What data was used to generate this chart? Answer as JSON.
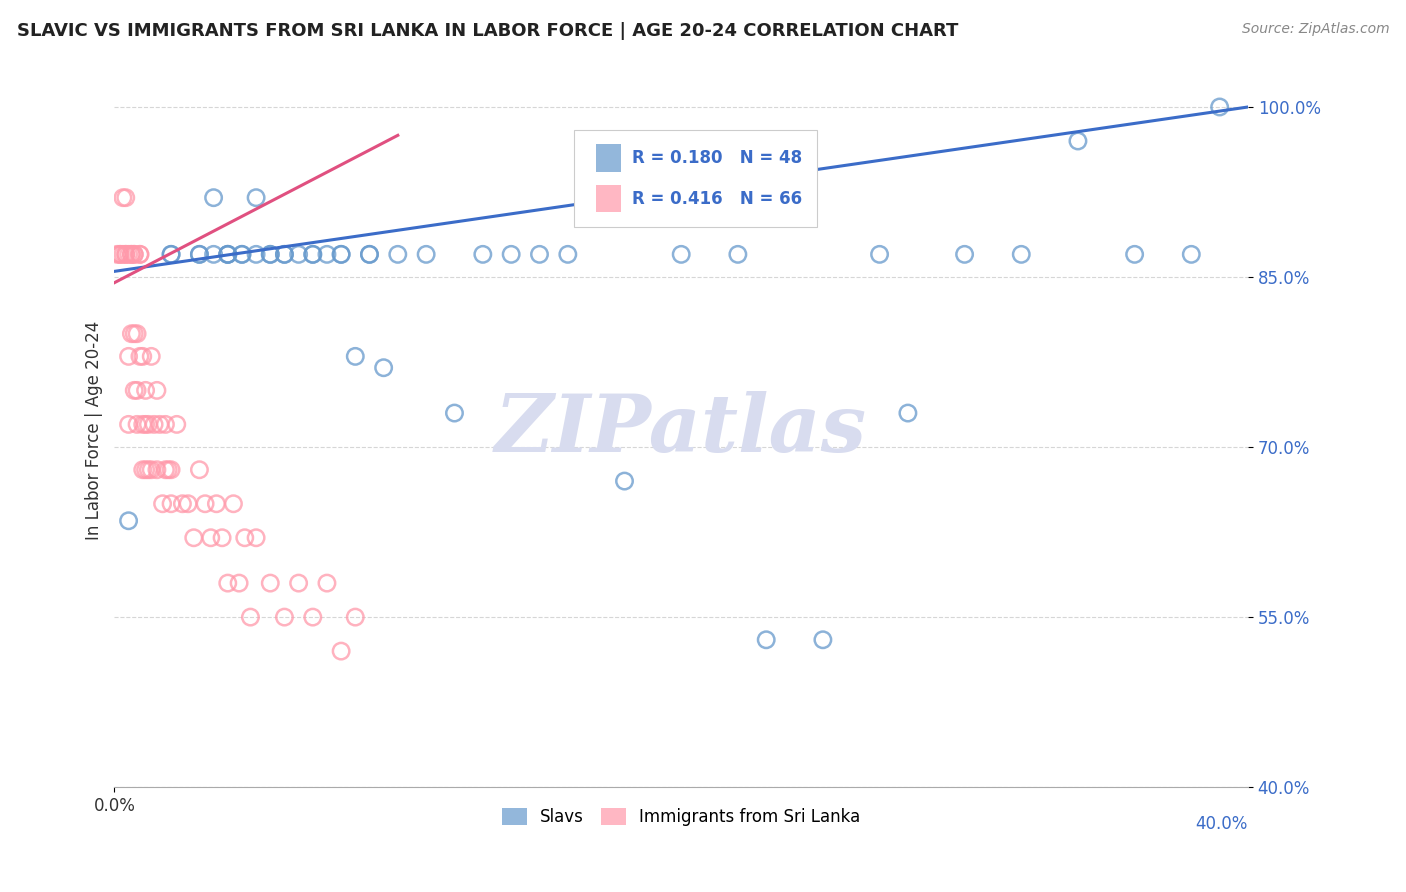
{
  "title": "SLAVIC VS IMMIGRANTS FROM SRI LANKA IN LABOR FORCE | AGE 20-24 CORRELATION CHART",
  "source": "Source: ZipAtlas.com",
  "ylabel": "In Labor Force | Age 20-24",
  "watermark": "ZIPatlas",
  "legend_blue_r": "R = 0.180",
  "legend_blue_n": "N = 48",
  "legend_pink_r": "R = 0.416",
  "legend_pink_n": "N = 66",
  "legend_label_blue": "Slavs",
  "legend_label_pink": "Immigrants from Sri Lanka",
  "xlim": [
    0.0,
    0.4
  ],
  "ylim": [
    0.4,
    1.03
  ],
  "yticks": [
    0.4,
    0.55,
    0.7,
    0.85,
    1.0
  ],
  "ytick_labels": [
    "40.0%",
    "55.0%",
    "70.0%",
    "85.0%",
    "100.0%"
  ],
  "xtick_left": "0.0%",
  "xtick_right": "40.0%",
  "blue_scatter_x": [
    0.005,
    0.02,
    0.02,
    0.03,
    0.03,
    0.035,
    0.035,
    0.04,
    0.04,
    0.04,
    0.045,
    0.045,
    0.05,
    0.05,
    0.055,
    0.055,
    0.06,
    0.06,
    0.065,
    0.07,
    0.07,
    0.075,
    0.08,
    0.08,
    0.085,
    0.09,
    0.09,
    0.095,
    0.1,
    0.11,
    0.12,
    0.13,
    0.14,
    0.15,
    0.16,
    0.18,
    0.2,
    0.22,
    0.23,
    0.25,
    0.27,
    0.28,
    0.3,
    0.32,
    0.34,
    0.36,
    0.38,
    0.39
  ],
  "blue_scatter_y": [
    0.635,
    0.87,
    0.87,
    0.87,
    0.87,
    0.92,
    0.87,
    0.87,
    0.87,
    0.87,
    0.87,
    0.87,
    0.92,
    0.87,
    0.87,
    0.87,
    0.87,
    0.87,
    0.87,
    0.87,
    0.87,
    0.87,
    0.87,
    0.87,
    0.78,
    0.87,
    0.87,
    0.77,
    0.87,
    0.87,
    0.73,
    0.87,
    0.87,
    0.87,
    0.87,
    0.67,
    0.87,
    0.87,
    0.53,
    0.53,
    0.87,
    0.73,
    0.87,
    0.87,
    0.97,
    0.87,
    0.87,
    1.0
  ],
  "pink_scatter_x": [
    0.001,
    0.002,
    0.002,
    0.003,
    0.003,
    0.004,
    0.004,
    0.004,
    0.005,
    0.005,
    0.005,
    0.006,
    0.006,
    0.006,
    0.007,
    0.007,
    0.007,
    0.007,
    0.008,
    0.008,
    0.008,
    0.009,
    0.009,
    0.009,
    0.01,
    0.01,
    0.01,
    0.011,
    0.011,
    0.011,
    0.012,
    0.012,
    0.013,
    0.013,
    0.014,
    0.015,
    0.015,
    0.016,
    0.017,
    0.018,
    0.018,
    0.019,
    0.02,
    0.02,
    0.022,
    0.024,
    0.026,
    0.028,
    0.03,
    0.032,
    0.034,
    0.036,
    0.038,
    0.04,
    0.042,
    0.044,
    0.046,
    0.048,
    0.05,
    0.055,
    0.06,
    0.065,
    0.07,
    0.075,
    0.08,
    0.085
  ],
  "pink_scatter_y": [
    0.87,
    0.87,
    0.87,
    0.87,
    0.92,
    0.87,
    0.92,
    0.87,
    0.72,
    0.78,
    0.87,
    0.8,
    0.87,
    0.87,
    0.75,
    0.8,
    0.87,
    0.87,
    0.75,
    0.8,
    0.72,
    0.78,
    0.87,
    0.87,
    0.68,
    0.72,
    0.78,
    0.68,
    0.75,
    0.72,
    0.68,
    0.72,
    0.78,
    0.68,
    0.72,
    0.75,
    0.68,
    0.72,
    0.65,
    0.68,
    0.72,
    0.68,
    0.65,
    0.68,
    0.72,
    0.65,
    0.65,
    0.62,
    0.68,
    0.65,
    0.62,
    0.65,
    0.62,
    0.58,
    0.65,
    0.58,
    0.62,
    0.55,
    0.62,
    0.58,
    0.55,
    0.58,
    0.55,
    0.58,
    0.52,
    0.55
  ],
  "blue_line_x": [
    0.0,
    0.4
  ],
  "blue_line_y": [
    0.855,
    1.0
  ],
  "pink_line_x": [
    0.0,
    0.1
  ],
  "pink_line_y": [
    0.845,
    0.975
  ],
  "blue_color": "#6699CC",
  "pink_color": "#FF99AA",
  "blue_line_color": "#3B6CC8",
  "pink_line_color": "#E05080",
  "grid_color": "#CCCCCC",
  "background_color": "#FFFFFF",
  "watermark_color": "#D8DCEF"
}
